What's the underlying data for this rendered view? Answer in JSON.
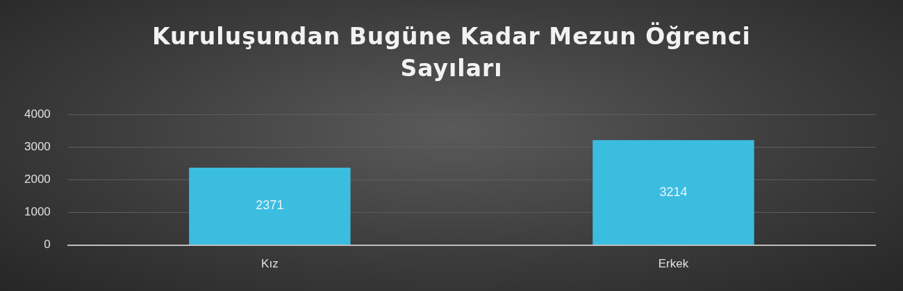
{
  "chart_data": {
    "type": "bar",
    "title": "Kuruluşundan Bugüne Kadar Mezun Öğrenci Sayıları",
    "categories": [
      "Kız",
      "Erkek"
    ],
    "values": [
      2371,
      3214
    ],
    "color": "#3bbde0",
    "ylim": [
      0,
      4000
    ],
    "yticks": [
      0,
      1000,
      2000,
      3000,
      4000
    ],
    "grid": "y",
    "data_labels": true
  }
}
